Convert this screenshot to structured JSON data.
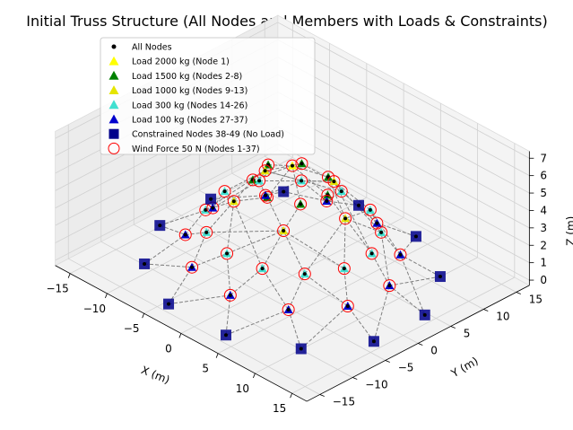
{
  "chart_data": {
    "type": "scatter",
    "title": "Initial Truss Structure (All Nodes and Members with Loads & Constraints)",
    "xlabel": "X (m)",
    "ylabel": "Y (m)",
    "zlabel": "Z (m)",
    "x_ticks": [
      -15,
      -10,
      -5,
      0,
      5,
      10,
      15
    ],
    "y_ticks": [
      -15,
      -10,
      -5,
      0,
      5,
      10,
      15
    ],
    "z_ticks": [
      0,
      1,
      2,
      3,
      4,
      5,
      6,
      7
    ],
    "xlim": [
      -17,
      17
    ],
    "ylim": [
      -17,
      17
    ],
    "zlim": [
      -0.3,
      7.4
    ],
    "legend_position": "top-left",
    "legend": [
      {
        "label": "All Nodes",
        "marker": "dot",
        "color": "#000000"
      },
      {
        "label": "Load 2000 kg (Node 1)",
        "marker": "triangle",
        "color": "#ffff00"
      },
      {
        "label": "Load 1500 kg (Nodes 2-8)",
        "marker": "triangle",
        "color": "#008000"
      },
      {
        "label": "Load 1000 kg (Nodes 9-13)",
        "marker": "triangle",
        "color": "#e5e500"
      },
      {
        "label": "Load 300 kg (Nodes 14-26)",
        "marker": "triangle",
        "color": "#40e0d0"
      },
      {
        "label": "Load 100 kg (Nodes 27-37)",
        "marker": "triangle",
        "color": "#0000cd"
      },
      {
        "label": "Constrained Nodes 38-49 (No Load)",
        "marker": "square",
        "color": "#00008b"
      },
      {
        "label": "Wind Force 50 N (Nodes 1-37)",
        "marker": "circle-open",
        "color": "#ff0000"
      }
    ],
    "rings": [
      {
        "name": "Node 1",
        "count": 1,
        "radius": 0,
        "z": 6.0
      },
      {
        "name": "Nodes 2-8",
        "count": 7,
        "radius": 4,
        "z": 5.0
      },
      {
        "name": "Nodes 9-13",
        "count": 5,
        "radius": 6,
        "z": 4.0
      },
      {
        "name": "Nodes 14-26",
        "count": 13,
        "radius": 9,
        "z": 2.5
      },
      {
        "name": "Nodes 27-37",
        "count": 11,
        "radius": 11,
        "z": 1.0
      },
      {
        "name": "Nodes 38-49",
        "count": 12,
        "radius": 15,
        "z": 0.0
      }
    ]
  }
}
